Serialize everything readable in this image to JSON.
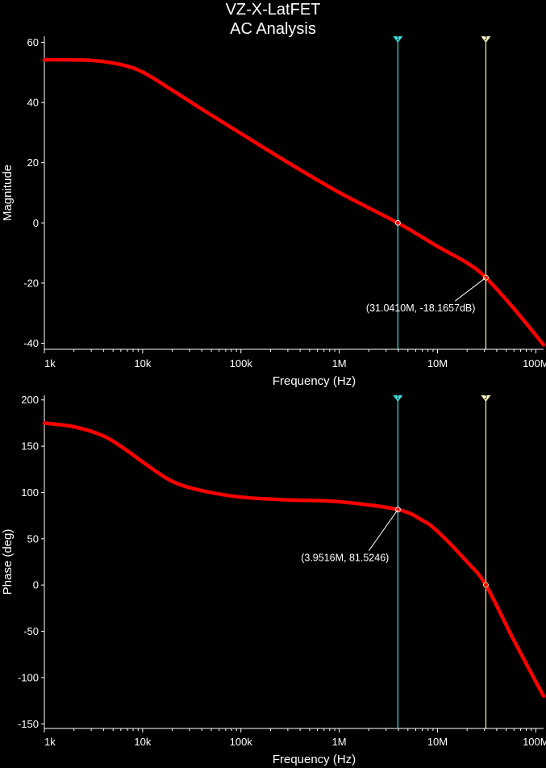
{
  "title": [
    "VZ-X-LatFET",
    "AC Analysis"
  ],
  "colors": {
    "background": "#000000",
    "trace": "#ff0000",
    "cursor1": "#40e0e0",
    "cursor2": "#fff8c0",
    "axis": "#ffffff"
  },
  "cursors": [
    {
      "id": "1",
      "freq": 3951600,
      "color": "#40e0e0"
    },
    {
      "id": "2",
      "freq": 31041000,
      "color": "#fff8c0"
    }
  ],
  "chart_data": [
    {
      "type": "line",
      "xscale": "log",
      "xlim": [
        1000,
        120000000
      ],
      "ylim": [
        -42,
        62
      ],
      "xlabel": "Frequency (Hz)",
      "ylabel": "Magnitude",
      "xticks": [
        1000,
        10000,
        100000,
        1000000,
        10000000,
        100000000
      ],
      "xticklabels": [
        "1k",
        "10k",
        "100k",
        "1M",
        "10M",
        "100M"
      ],
      "yticks": [
        60,
        40,
        20,
        0,
        -20,
        -40
      ],
      "yticklabels": [
        "60",
        "40",
        "20",
        "0",
        "-20",
        "-40"
      ],
      "grid": false,
      "series": [
        {
          "x": [
            1000,
            3000,
            6000,
            10000,
            20000,
            40000,
            100000,
            300000,
            1000000,
            3951600,
            10000000,
            20000000,
            31041000,
            60000000,
            120000000
          ],
          "y": [
            54.2,
            54,
            52.6,
            50.1,
            44.1,
            37.8,
            29.7,
            20.1,
            10.1,
            0,
            -7.8,
            -13.3,
            -18.17,
            -28.5,
            -40.5
          ]
        }
      ],
      "annotation": {
        "text": "(31.0410M, -18.1657dB)",
        "x": 31041000,
        "y": -18.1657
      }
    },
    {
      "type": "line",
      "xscale": "log",
      "xlim": [
        1000,
        120000000
      ],
      "ylim": [
        -155,
        205
      ],
      "xlabel": "Frequency (Hz)",
      "ylabel": "Phase (deg)",
      "xticks": [
        1000,
        10000,
        100000,
        1000000,
        10000000,
        100000000
      ],
      "xticklabels": [
        "1k",
        "10k",
        "100k",
        "1M",
        "10M",
        "100M"
      ],
      "yticks": [
        200,
        150,
        100,
        50,
        0,
        -50,
        -100,
        -150
      ],
      "yticklabels": [
        "200",
        "150",
        "100",
        "50",
        "0",
        "-50",
        "-100",
        "-150"
      ],
      "grid": false,
      "series": [
        {
          "x": [
            1000,
            2000,
            4000,
            7000,
            10000,
            20000,
            40000,
            100000,
            300000,
            1000000,
            3951600,
            7000000,
            10000000,
            20000000,
            31041000,
            60000000,
            120000000
          ],
          "y": [
            175,
            171,
            161,
            145,
            133,
            112,
            102,
            95,
            92,
            90,
            81.5,
            70,
            58,
            25,
            0,
            -60,
            -120
          ]
        }
      ],
      "annotation": {
        "text": "(3.9516M, 81.5246)",
        "x": 3951600,
        "y": 81.5246
      }
    }
  ]
}
